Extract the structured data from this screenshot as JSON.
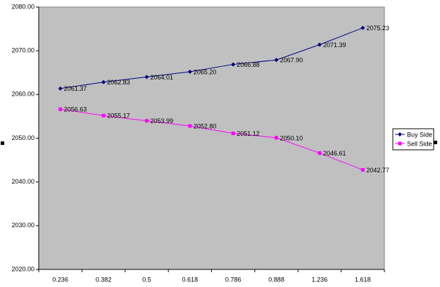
{
  "chart_data": {
    "type": "line",
    "categories": [
      "0.236",
      "0.382",
      "0.5",
      "0.618",
      "0.786",
      "0.888",
      "1.236",
      "1.618"
    ],
    "series": [
      {
        "name": "Buy Side",
        "color": "#000080",
        "marker": "diamond",
        "values": [
          2061.37,
          2062.83,
          2064.01,
          2065.2,
          2066.88,
          2067.9,
          2071.39,
          2075.23
        ],
        "value_labels": [
          "2061.37",
          "2062.83",
          "2064.01",
          "2065.20",
          "2066.88",
          "2067.90",
          "2071.39",
          "2075.23"
        ]
      },
      {
        "name": "Sell Side",
        "color": "#ff00ff",
        "marker": "square",
        "values": [
          2056.63,
          2055.17,
          2053.99,
          2052.8,
          2051.12,
          2050.1,
          2046.61,
          2042.77
        ],
        "value_labels": [
          "2056.63",
          "2055.17",
          "2053.99",
          "2052.80",
          "2051.12",
          "2050.10",
          "2046.61",
          "2042.77"
        ]
      }
    ],
    "ylim": [
      2020,
      2080
    ],
    "yticks": [
      {
        "value": 2020,
        "label": "2020.00"
      },
      {
        "value": 2030,
        "label": "2030.00"
      },
      {
        "value": 2040,
        "label": "2040.00"
      },
      {
        "value": 2050,
        "label": "2050.00"
      },
      {
        "value": 2060,
        "label": "2060.00"
      },
      {
        "value": 2070,
        "label": "2070.00"
      },
      {
        "value": 2080,
        "label": "2080.00"
      }
    ],
    "plot_background": "#c0c0c0",
    "legend": "right"
  }
}
